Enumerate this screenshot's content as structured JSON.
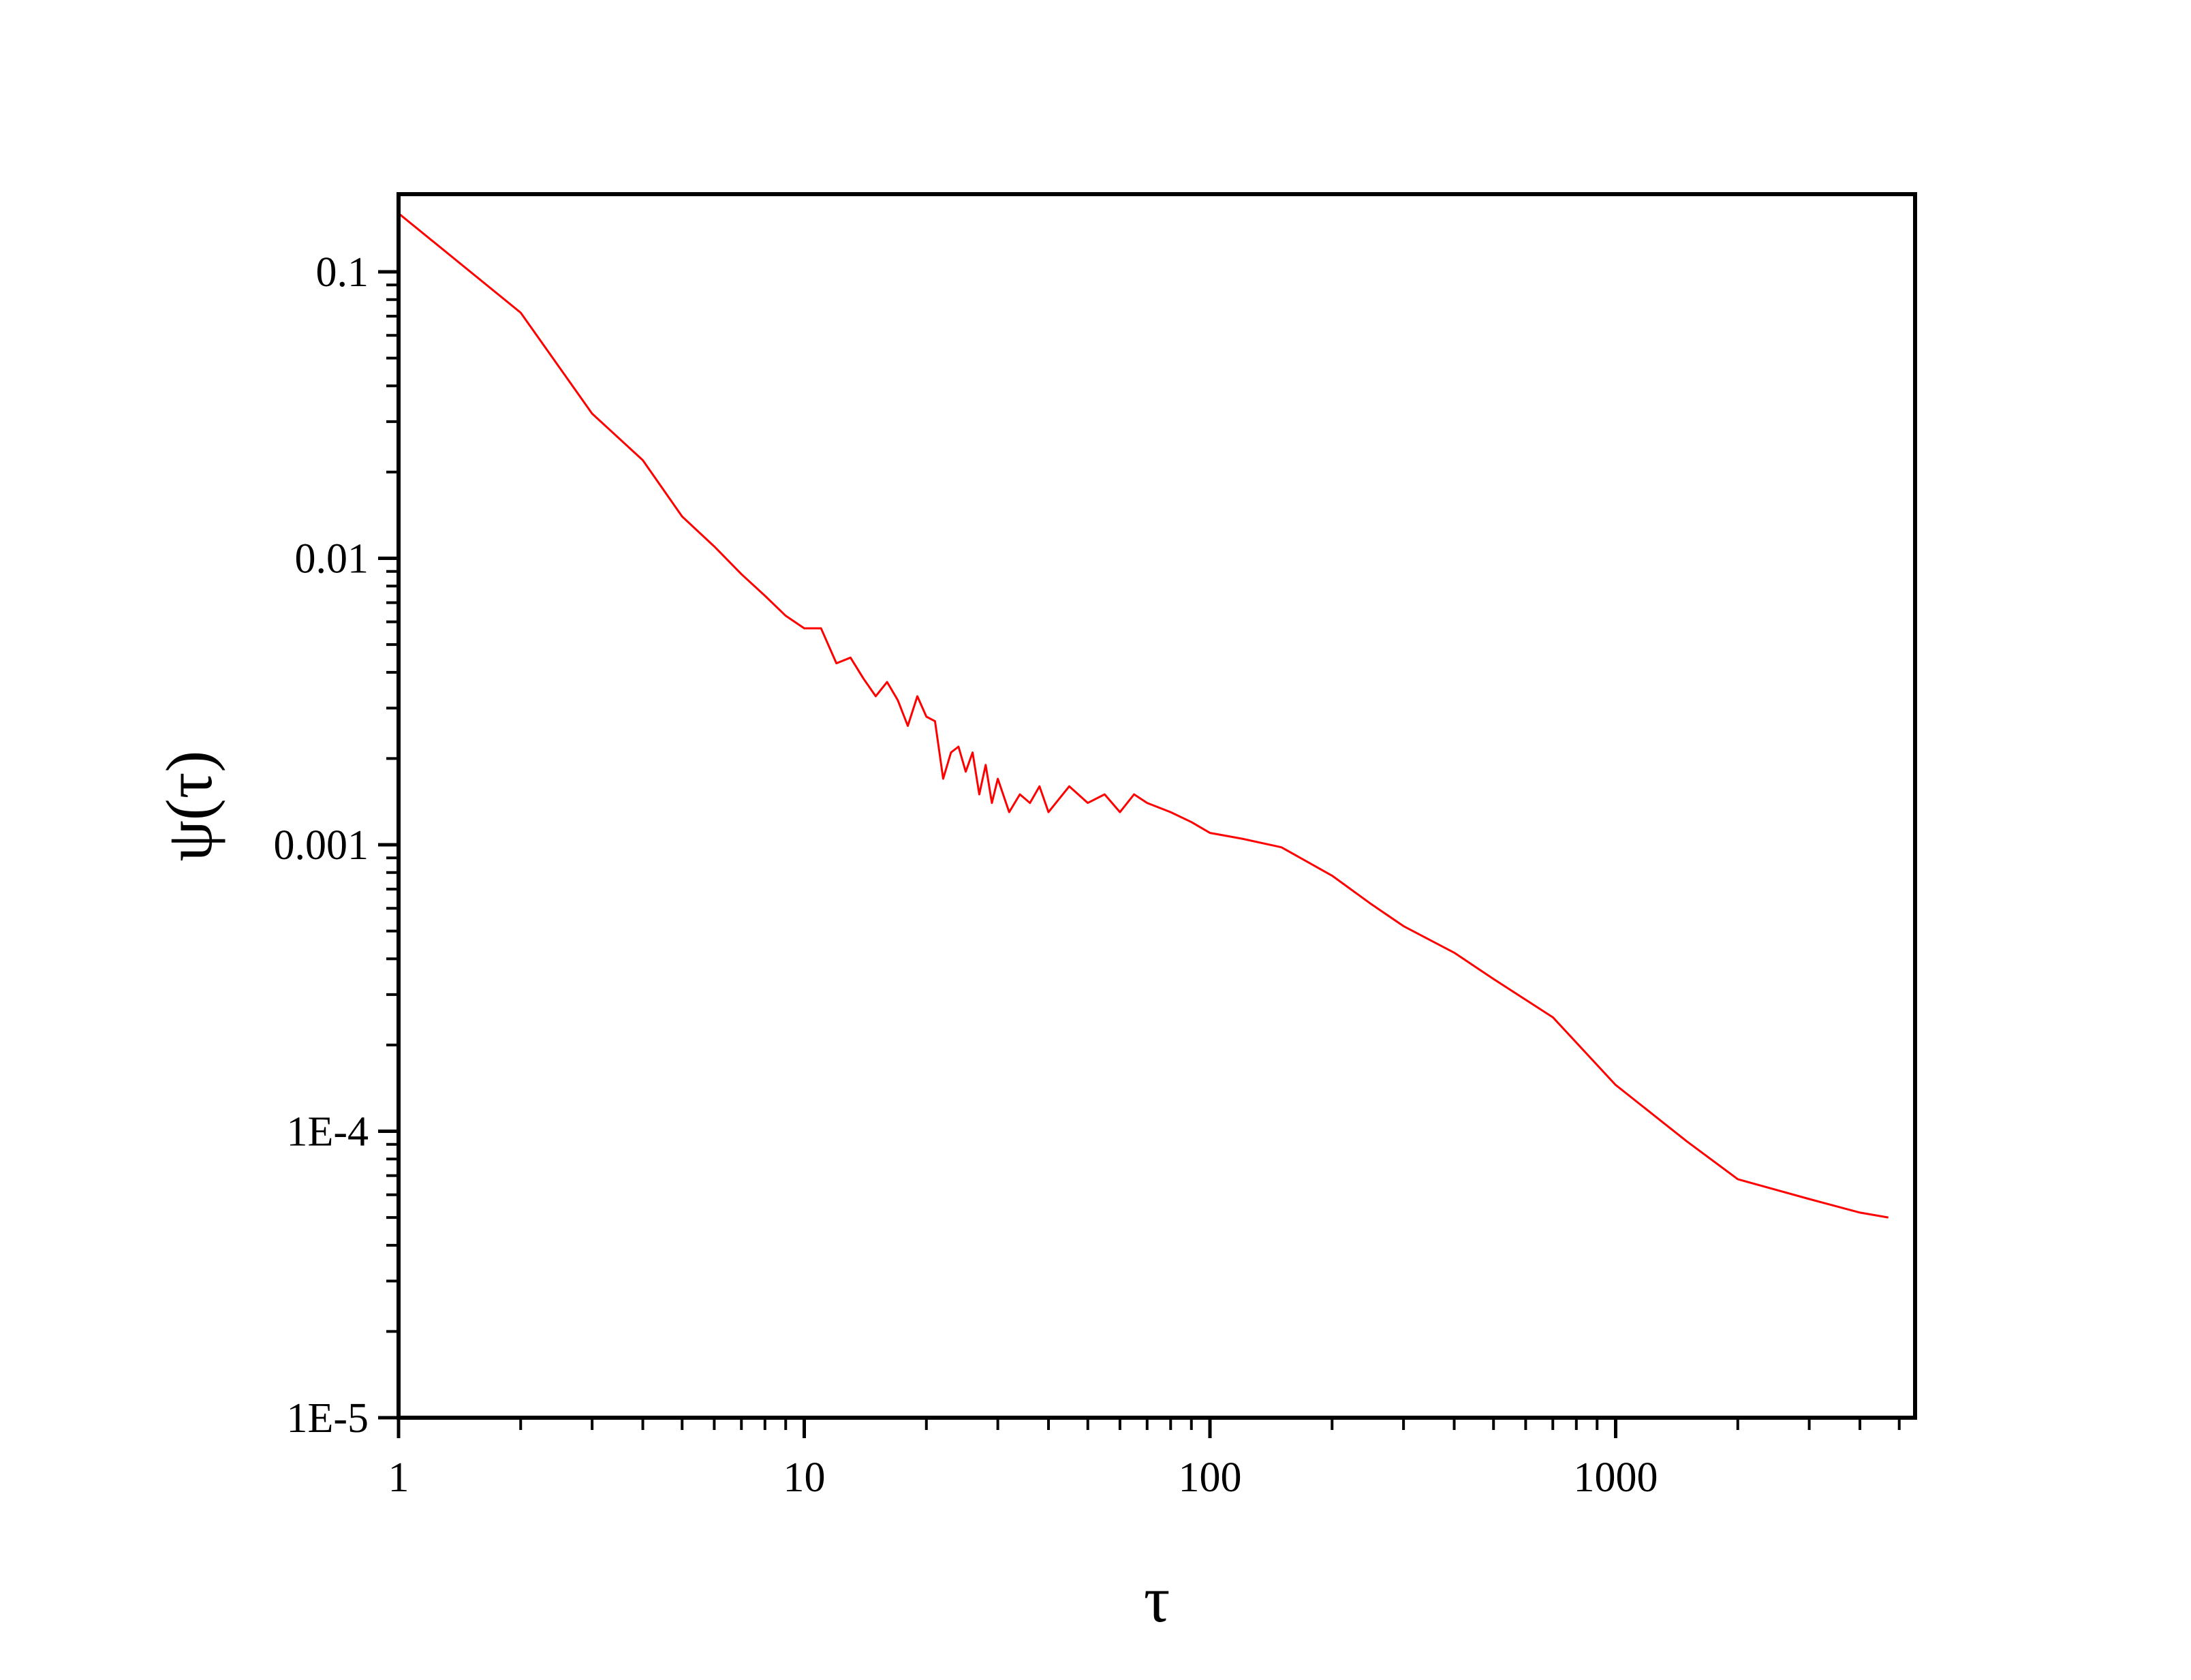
{
  "chart_data": {
    "type": "line",
    "title": "",
    "xlabel": "τ",
    "ylabel": "ψ(τ)",
    "x_scale": "log",
    "y_scale": "log",
    "xlim": [
      1,
      5000
    ],
    "ylim": [
      1e-05,
      0.18
    ],
    "grid": false,
    "legend": "none",
    "x_ticks": [
      {
        "value": 1,
        "label": "1"
      },
      {
        "value": 10,
        "label": "10"
      },
      {
        "value": 100,
        "label": "100"
      },
      {
        "value": 1000,
        "label": "1000"
      }
    ],
    "y_ticks": [
      {
        "value": 0.1,
        "label": "0.1"
      },
      {
        "value": 0.01,
        "label": "0.01"
      },
      {
        "value": 0.001,
        "label": "0.001"
      },
      {
        "value": 0.0001,
        "label": "1E-4"
      },
      {
        "value": 1e-05,
        "label": "1E-5"
      }
    ],
    "series": [
      {
        "color": "#ff0000",
        "x": [
          1,
          2,
          3,
          4,
          5,
          6,
          7,
          8,
          9,
          10,
          11,
          12,
          13,
          14,
          15,
          16,
          17,
          18,
          19,
          20,
          21,
          22,
          23,
          24,
          25,
          26,
          27,
          28,
          29,
          30,
          32,
          34,
          36,
          38,
          40,
          45,
          50,
          55,
          60,
          65,
          70,
          80,
          90,
          100,
          120,
          150,
          200,
          250,
          300,
          400,
          500,
          700,
          1000,
          1500,
          2000,
          3000,
          4000,
          4700
        ],
        "y": [
          0.16,
          0.072,
          0.032,
          0.022,
          0.014,
          0.011,
          0.0088,
          0.0074,
          0.0063,
          0.0057,
          0.0057,
          0.0043,
          0.0045,
          0.0038,
          0.0033,
          0.0037,
          0.0032,
          0.0026,
          0.0033,
          0.0028,
          0.0027,
          0.0017,
          0.0021,
          0.0022,
          0.0018,
          0.0021,
          0.0015,
          0.0019,
          0.0014,
          0.0017,
          0.0013,
          0.0015,
          0.0014,
          0.0016,
          0.0013,
          0.0016,
          0.0014,
          0.0015,
          0.0013,
          0.0015,
          0.0014,
          0.0013,
          0.0012,
          0.0011,
          0.00105,
          0.00098,
          0.00078,
          0.00062,
          0.00052,
          0.00042,
          0.00034,
          0.00025,
          0.000145,
          9.2e-05,
          6.8e-05,
          5.8e-05,
          5.2e-05,
          5e-05
        ]
      }
    ]
  }
}
